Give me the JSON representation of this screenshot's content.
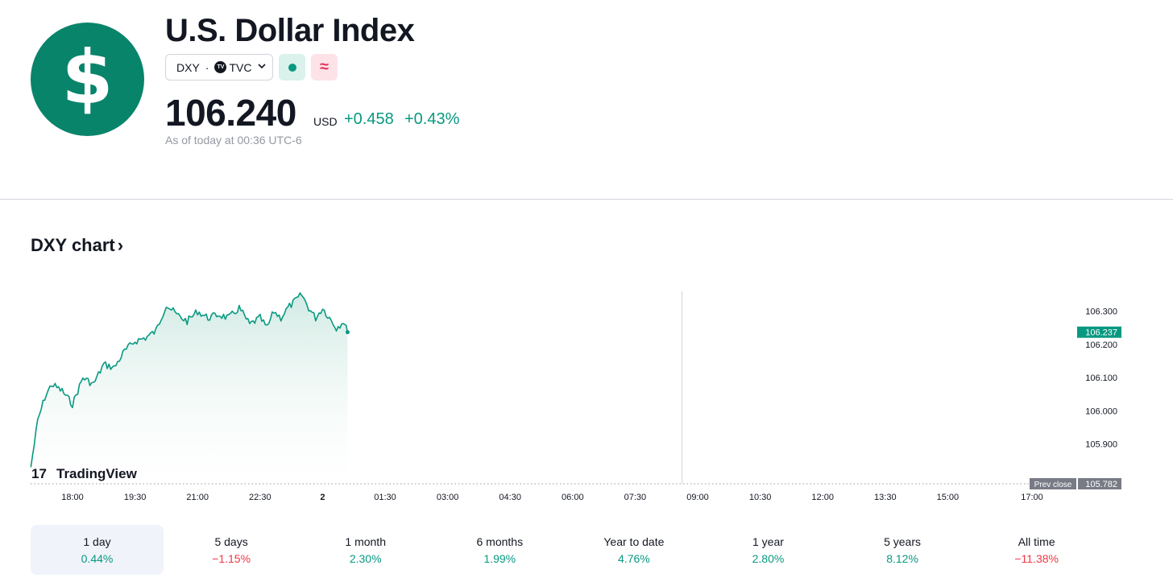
{
  "header": {
    "logo_glyph": "$",
    "title": "U.S. Dollar Index",
    "symbol": "DXY",
    "separator": "·",
    "exchange_logo_text": "TV",
    "exchange": "TVC",
    "market_status_icon": "dot-icon",
    "delayed_icon": "approx-icon",
    "delayed_glyph": "≈",
    "price": "106.240",
    "currency": "USD",
    "change": "+0.458",
    "change_percent": "+0.43%",
    "as_of": "As of today at 00:36 UTC-6",
    "colors": {
      "brand": "#08846b",
      "positive": "#089981",
      "negative": "#f23645"
    }
  },
  "chart_section": {
    "heading": "DXY chart",
    "heading_arrow": "›",
    "watermark": "TradingView",
    "watermark_logo": "17"
  },
  "chart_data": {
    "type": "area",
    "title": "",
    "xlabel": "",
    "ylabel": "",
    "x_ticks": [
      "18:00",
      "19:30",
      "21:00",
      "22:30",
      "2",
      "01:30",
      "03:00",
      "04:30",
      "06:00",
      "07:30",
      "09:00",
      "10:30",
      "12:00",
      "13:30",
      "15:00",
      "17:00"
    ],
    "y_ticks": [
      "106.300",
      "106.200",
      "106.100",
      "106.000",
      "105.900"
    ],
    "ylim": [
      105.78,
      106.36
    ],
    "session_start": "17:00",
    "last_value_label": "106.237",
    "prev_close_label": "Prev close",
    "prev_close_value": "105.782",
    "series": [
      {
        "x": [
          "17:00",
          "17:10",
          "17:20",
          "17:30",
          "17:45",
          "18:00",
          "18:15",
          "18:30",
          "18:45",
          "19:00",
          "19:15",
          "19:30",
          "19:45",
          "20:00",
          "20:15",
          "20:30",
          "20:45",
          "21:00",
          "21:15",
          "21:30",
          "21:45",
          "22:00",
          "22:15",
          "22:30",
          "22:40",
          "22:50",
          "23:00",
          "23:10",
          "23:20",
          "23:30",
          "23:40",
          "23:50",
          "00:00",
          "00:10",
          "00:20",
          "00:30",
          "00:36"
        ],
        "y": [
          105.83,
          105.97,
          106.04,
          106.08,
          106.06,
          106.02,
          106.1,
          106.08,
          106.14,
          106.13,
          106.18,
          106.21,
          106.22,
          106.24,
          106.32,
          106.29,
          106.27,
          106.3,
          106.28,
          106.29,
          106.28,
          106.31,
          106.26,
          106.28,
          106.25,
          106.3,
          106.28,
          106.31,
          106.33,
          106.35,
          106.31,
          106.28,
          106.31,
          106.28,
          106.25,
          106.27,
          106.237
        ]
      }
    ],
    "colors": {
      "line": "#089981",
      "fill_top": "#cfe9e2",
      "prev_close_tag": "#787b86",
      "last_value_tag": "#089981"
    },
    "grid": false
  },
  "periods": [
    {
      "label": "1 day",
      "value": "0.44%",
      "sign": "pos",
      "active": true
    },
    {
      "label": "5 days",
      "value": "−1.15%",
      "sign": "neg",
      "active": false
    },
    {
      "label": "1 month",
      "value": "2.30%",
      "sign": "pos",
      "active": false
    },
    {
      "label": "6 months",
      "value": "1.99%",
      "sign": "pos",
      "active": false
    },
    {
      "label": "Year to date",
      "value": "4.76%",
      "sign": "pos",
      "active": false
    },
    {
      "label": "1 year",
      "value": "2.80%",
      "sign": "pos",
      "active": false
    },
    {
      "label": "5 years",
      "value": "8.12%",
      "sign": "pos",
      "active": false
    },
    {
      "label": "All time",
      "value": "−11.38%",
      "sign": "neg",
      "active": false
    }
  ]
}
